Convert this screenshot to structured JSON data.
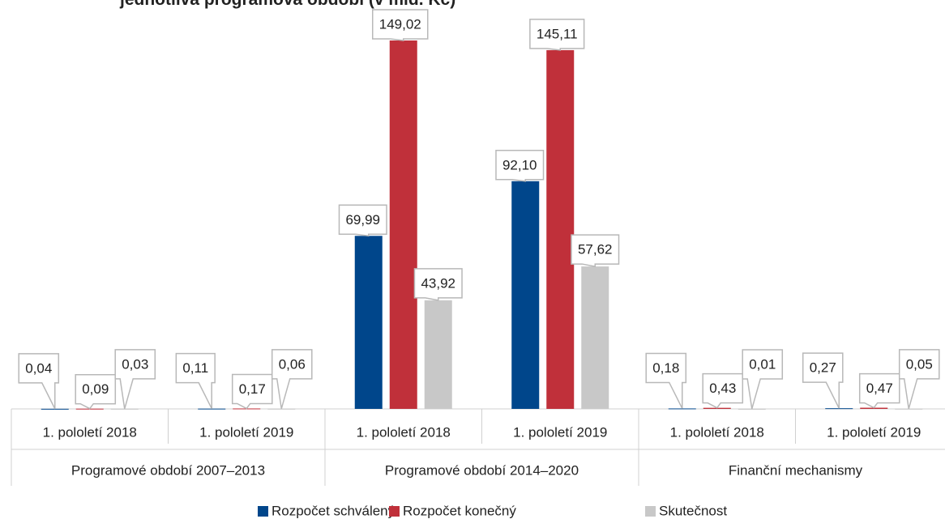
{
  "chart_data": {
    "type": "bar",
    "title": "jednotlivá programová období (v mld. Kč)",
    "categories": [
      "1. pololetí 2018",
      "1. pololetí 2019",
      "1. pololetí 2018",
      "1. pololetí 2019",
      "1. pololetí 2018",
      "1. pololetí 2019"
    ],
    "groups": [
      "Programové období 2007–2013",
      "Programové období 2014–2020",
      "Finanční mechanismy"
    ],
    "series": [
      {
        "name": "Rozpočet schválený",
        "color": "#00468b",
        "values": [
          0.04,
          0.11,
          69.99,
          92.1,
          0.18,
          0.27
        ],
        "value_labels": [
          "0,04",
          "0,11",
          "69,99",
          "92,10",
          "0,18",
          "0,27"
        ]
      },
      {
        "name": "Rozpočet konečný",
        "color": "#c0303a",
        "values": [
          0.09,
          0.17,
          149.02,
          145.11,
          0.43,
          0.47
        ],
        "value_labels": [
          "0,09",
          "0,17",
          "149,02",
          "145,11",
          "0,43",
          "0,47"
        ]
      },
      {
        "name": "Skutečnost",
        "color": "#c8c8c8",
        "values": [
          0.03,
          0.06,
          43.92,
          57.62,
          0.01,
          0.05
        ],
        "value_labels": [
          "0,03",
          "0,06",
          "43,92",
          "57,62",
          "0,01",
          "0,05"
        ]
      }
    ],
    "ylim": [
      0,
      150
    ]
  }
}
